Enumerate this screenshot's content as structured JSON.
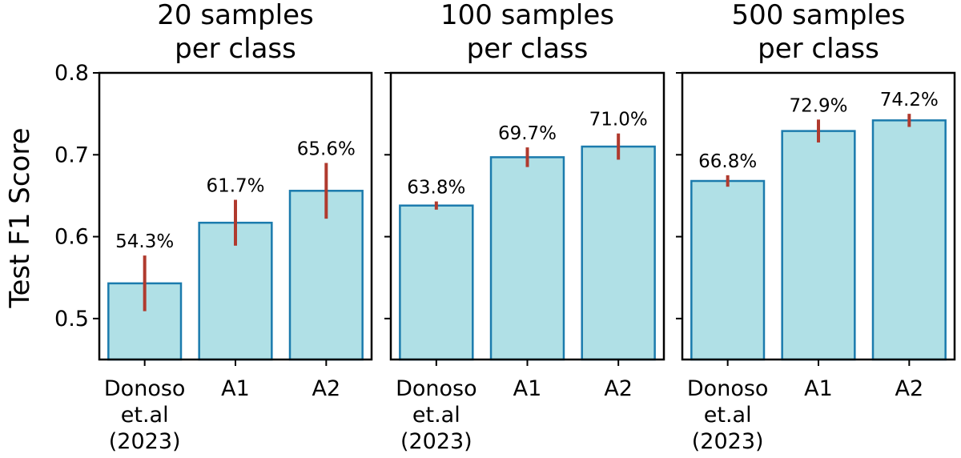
{
  "figure": {
    "ylabel": "Test F1 Score",
    "colors": {
      "bar_fill": "#b0e0e6",
      "bar_edge": "#1b7bad",
      "error_bar": "#b03a2e"
    }
  },
  "chart_data": [
    {
      "type": "bar",
      "title": "20 samples per class",
      "title_lines": [
        "20 samples",
        "per class"
      ],
      "categories": [
        "Donoso et.al (2023)",
        "A1",
        "A2"
      ],
      "category_lines": [
        [
          "Donoso",
          "et.al",
          "(2023)"
        ],
        [
          "A1"
        ],
        [
          "A2"
        ]
      ],
      "values": [
        0.543,
        0.617,
        0.656
      ],
      "errors": [
        0.034,
        0.028,
        0.034
      ],
      "labels": [
        "54.3%",
        "61.7%",
        "65.6%"
      ],
      "ylabel": "Test F1 Score",
      "ylim": [
        0.45,
        0.8
      ],
      "yticks": [
        0.5,
        0.6,
        0.7,
        0.8
      ],
      "ytick_labels": [
        "0.5",
        "0.6",
        "0.7",
        "0.8"
      ]
    },
    {
      "type": "bar",
      "title": "100 samples per class",
      "title_lines": [
        "100 samples",
        "per class"
      ],
      "categories": [
        "Donoso et.al (2023)",
        "A1",
        "A2"
      ],
      "category_lines": [
        [
          "Donoso",
          "et.al",
          "(2023)"
        ],
        [
          "A1"
        ],
        [
          "A2"
        ]
      ],
      "values": [
        0.638,
        0.697,
        0.71
      ],
      "errors": [
        0.005,
        0.012,
        0.016
      ],
      "labels": [
        "63.8%",
        "69.7%",
        "71.0%"
      ],
      "ylim": [
        0.45,
        0.8
      ]
    },
    {
      "type": "bar",
      "title": "500 samples per class",
      "title_lines": [
        "500 samples",
        "per class"
      ],
      "categories": [
        "Donoso et.al (2023)",
        "A1",
        "A2"
      ],
      "category_lines": [
        [
          "Donoso",
          "et.al",
          "(2023)"
        ],
        [
          "A1"
        ],
        [
          "A2"
        ]
      ],
      "values": [
        0.668,
        0.729,
        0.742
      ],
      "errors": [
        0.007,
        0.014,
        0.008
      ],
      "labels": [
        "66.8%",
        "72.9%",
        "74.2%"
      ],
      "ylim": [
        0.45,
        0.8
      ]
    }
  ]
}
